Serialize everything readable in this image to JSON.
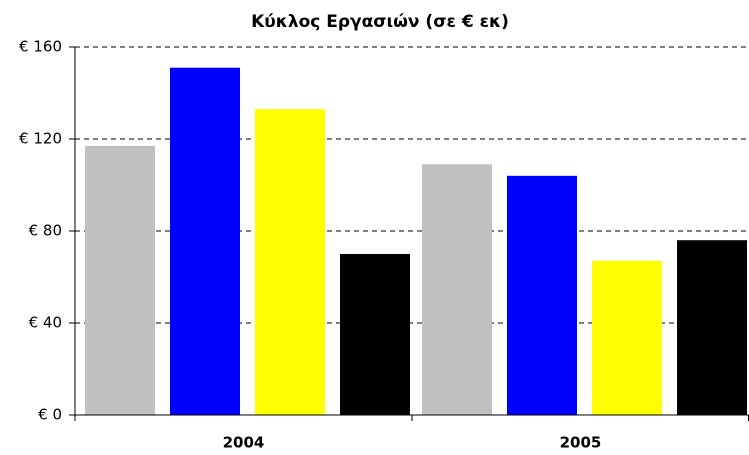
{
  "chart_data": {
    "type": "bar",
    "title": "Κύκλος Εργασιών (σε € εκ)",
    "categories": [
      "2004",
      "2005"
    ],
    "series": [
      {
        "color": "#c0c0c0",
        "values": [
          117,
          109
        ]
      },
      {
        "color": "#0000ff",
        "values": [
          151,
          104
        ]
      },
      {
        "color": "#ffff00",
        "values": [
          133,
          67
        ]
      },
      {
        "color": "#000000",
        "values": [
          70,
          76
        ]
      }
    ],
    "ylim": [
      0,
      160
    ],
    "yticks": [
      {
        "value": 0,
        "label": "€ 0"
      },
      {
        "value": 40,
        "label": "€ 40"
      },
      {
        "value": 80,
        "label": "€ 80"
      },
      {
        "value": 120,
        "label": "€ 120"
      },
      {
        "value": 160,
        "label": "€ 160"
      }
    ],
    "grid": true
  }
}
